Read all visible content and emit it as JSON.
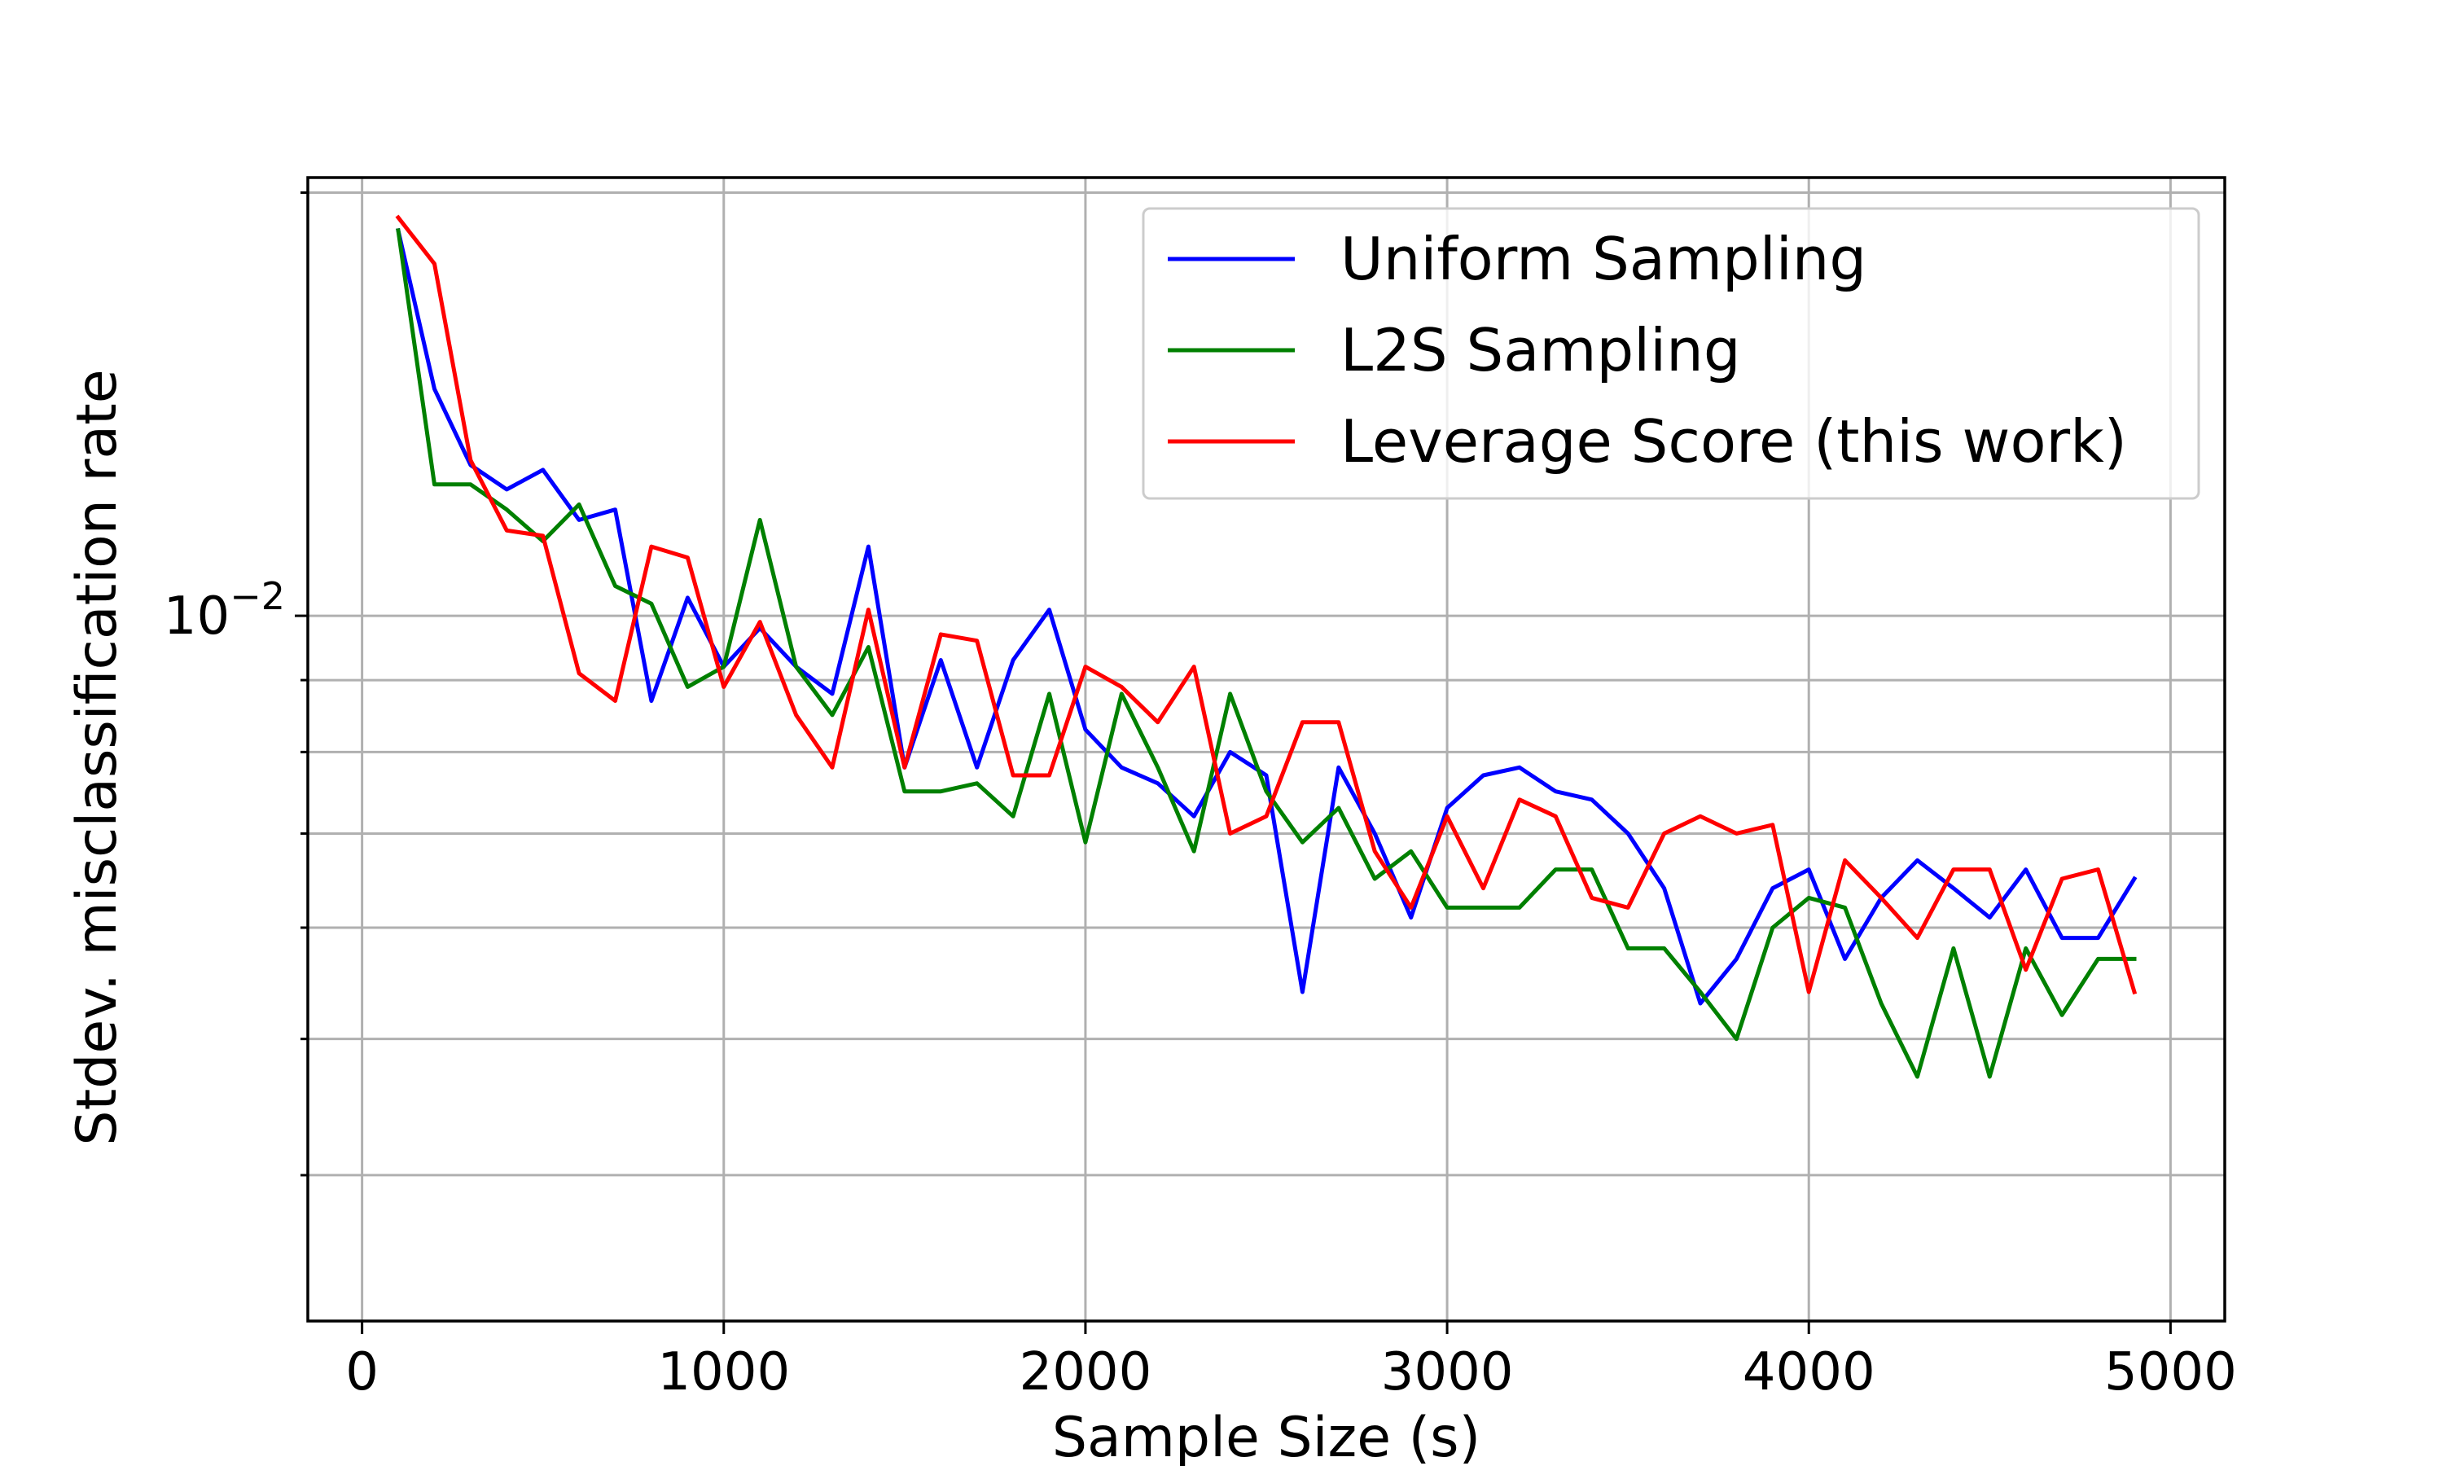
{
  "chart_data": {
    "type": "line",
    "title": "",
    "xlabel": "Sample Size (s)",
    "ylabel": "Stdev. misclassification rate",
    "xlim": [
      -150,
      5150
    ],
    "ylim": [
      0.00315,
      0.0205
    ],
    "yscale": "log",
    "grid": true,
    "legend_position": "top-right",
    "x_ticks": [
      0,
      1000,
      2000,
      3000,
      4000,
      5000
    ],
    "x_tick_labels": [
      "0",
      "1000",
      "2000",
      "3000",
      "4000",
      "5000"
    ],
    "y_major_ticks": [
      0.01
    ],
    "y_major_tick_labels": [
      {
        "base": "10",
        "exp": "−2"
      }
    ],
    "y_minor_ticks": [
      0.004,
      0.005,
      0.006,
      0.007,
      0.008,
      0.009,
      0.02
    ],
    "x": [
      100,
      200,
      300,
      400,
      500,
      600,
      700,
      800,
      900,
      1000,
      1100,
      1200,
      1300,
      1400,
      1500,
      1600,
      1700,
      1800,
      1900,
      2000,
      2100,
      2200,
      2300,
      2400,
      2500,
      2600,
      2700,
      2800,
      2900,
      3000,
      3100,
      3200,
      3300,
      3400,
      3500,
      3600,
      3700,
      3800,
      3900,
      4000,
      4100,
      4200,
      4300,
      4400,
      4500,
      4600,
      4700,
      4800,
      4900
    ],
    "series": [
      {
        "name": "Uniform Sampling",
        "color": "#0000ff",
        "values": [
          0.0188,
          0.0145,
          0.0128,
          0.0123,
          0.0127,
          0.0117,
          0.0119,
          0.0087,
          0.0103,
          0.0092,
          0.0098,
          0.0092,
          0.0088,
          0.0112,
          0.0078,
          0.0093,
          0.0078,
          0.0093,
          0.0101,
          0.0083,
          0.0078,
          0.0076,
          0.0072,
          0.008,
          0.0077,
          0.0054,
          0.0078,
          0.007,
          0.0061,
          0.0073,
          0.0077,
          0.0078,
          0.0075,
          0.0074,
          0.007,
          0.0064,
          0.0053,
          0.0057,
          0.0064,
          0.0066,
          0.0057,
          0.0063,
          0.0067,
          0.0064,
          0.0061,
          0.0066,
          0.0059,
          0.0059,
          0.0065
        ]
      },
      {
        "name": "L2S Sampling",
        "color": "#008000",
        "values": [
          0.0188,
          0.0124,
          0.0124,
          0.0119,
          0.0113,
          0.012,
          0.0105,
          0.0102,
          0.0089,
          0.0092,
          0.0117,
          0.0092,
          0.0085,
          0.0095,
          0.0075,
          0.0075,
          0.0076,
          0.0072,
          0.0088,
          0.0069,
          0.0088,
          0.0078,
          0.0068,
          0.0088,
          0.0075,
          0.0069,
          0.0073,
          0.0065,
          0.0068,
          0.0062,
          0.0062,
          0.0062,
          0.0066,
          0.0066,
          0.0058,
          0.0058,
          0.0054,
          0.005,
          0.006,
          0.0063,
          0.0062,
          0.0053,
          0.0047,
          0.0058,
          0.0047,
          0.0058,
          0.0052,
          0.0057,
          0.0057
        ]
      },
      {
        "name": "Leverage Score (this work)",
        "color": "#ff0000",
        "values": [
          0.0192,
          0.0178,
          0.0129,
          0.0115,
          0.0114,
          0.0091,
          0.0087,
          0.0112,
          0.011,
          0.0089,
          0.0099,
          0.0085,
          0.0078,
          0.0101,
          0.0078,
          0.0097,
          0.0096,
          0.0077,
          0.0077,
          0.0092,
          0.0089,
          0.0084,
          0.0092,
          0.007,
          0.0072,
          0.0084,
          0.0084,
          0.0068,
          0.0062,
          0.0072,
          0.0064,
          0.0074,
          0.0072,
          0.0063,
          0.0062,
          0.007,
          0.0072,
          0.007,
          0.0071,
          0.0054,
          0.0067,
          0.0063,
          0.0059,
          0.0066,
          0.0066,
          0.0056,
          0.0065,
          0.0066,
          0.0054
        ]
      }
    ]
  }
}
